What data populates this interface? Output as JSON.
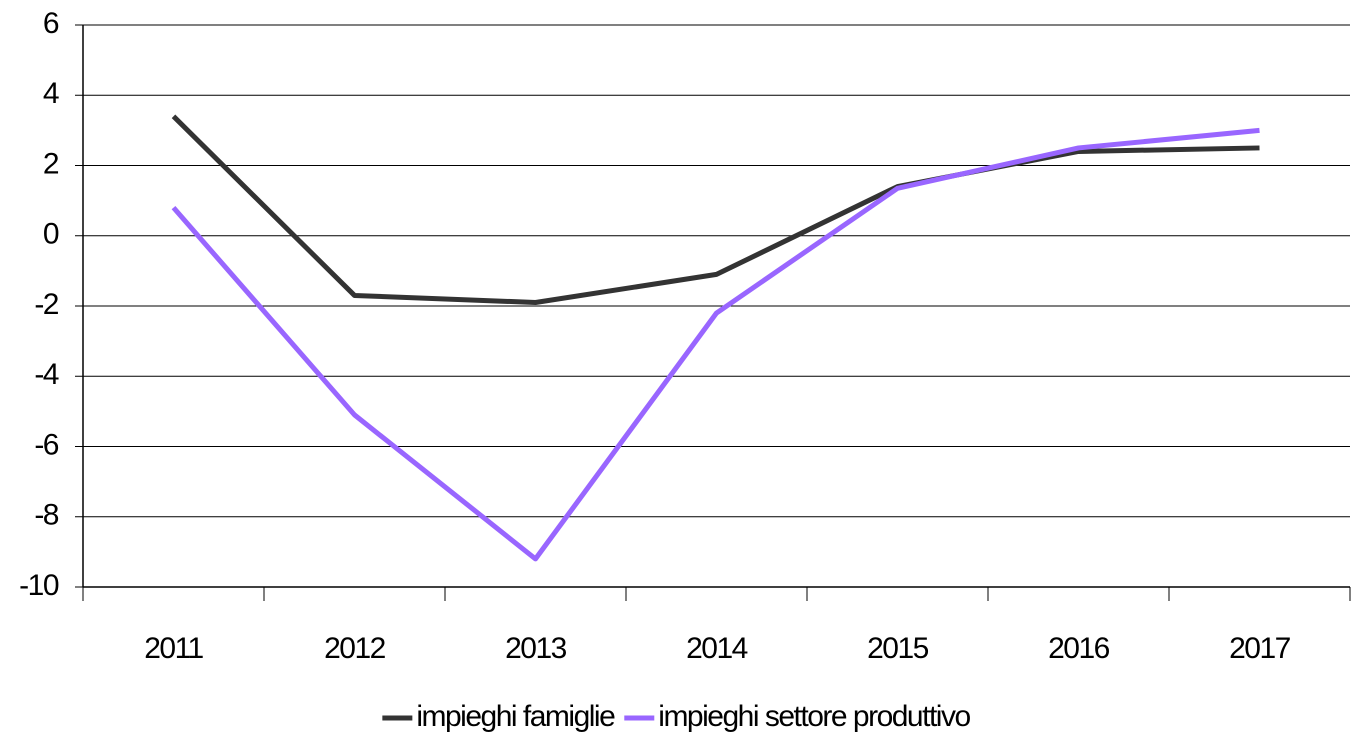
{
  "chart_data": {
    "type": "line",
    "categories": [
      "2011",
      "2012",
      "2013",
      "2014",
      "2015",
      "2016",
      "2017"
    ],
    "series": [
      {
        "name": "impieghi famiglie",
        "color": "#333333",
        "values": [
          3.4,
          -1.7,
          -1.9,
          -1.1,
          1.4,
          2.4,
          2.5
        ]
      },
      {
        "name": "impieghi settore produttivo",
        "color": "#9966ff",
        "values": [
          0.8,
          -5.1,
          -9.2,
          -2.2,
          1.35,
          2.5,
          3.0
        ]
      }
    ],
    "ylim": [
      -10,
      6
    ],
    "yticks": [
      -10,
      -8,
      -6,
      -4,
      -2,
      0,
      2,
      4,
      6
    ],
    "grid": true,
    "legend": "bottom"
  }
}
